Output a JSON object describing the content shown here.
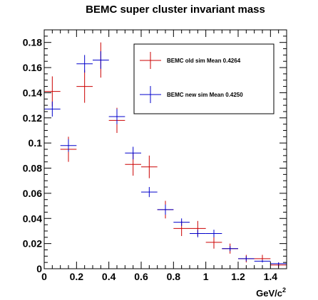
{
  "chart_data": {
    "type": "scatter",
    "title": "BEMC super cluster invariant mass",
    "xlabel": "GeV/c",
    "xlabel_sup": "2",
    "ylabel": "",
    "xlim": [
      0,
      1.5
    ],
    "ylim": [
      0,
      0.19
    ],
    "xticks": [
      0,
      0.2,
      0.4,
      0.6,
      0.8,
      1,
      1.2,
      1.4
    ],
    "xtick_labels": [
      "0",
      "0.2",
      "0.4",
      "0.6",
      "0.8",
      "1",
      "1.2",
      "1.4"
    ],
    "yticks": [
      0,
      0.02,
      0.04,
      0.06,
      0.08,
      0.1,
      0.12,
      0.14,
      0.16,
      0.18
    ],
    "ytick_labels": [
      "0",
      "0.02",
      "0.04",
      "0.06",
      "0.08",
      "0.1",
      "0.12",
      "0.14",
      "0.16",
      "0.18"
    ],
    "grid": false,
    "legend_position": "top-right",
    "bin_width": 0.1,
    "x": [
      0.05,
      0.15,
      0.25,
      0.35,
      0.45,
      0.55,
      0.65,
      0.75,
      0.85,
      0.95,
      1.05,
      1.15,
      1.25,
      1.35,
      1.45
    ],
    "series": [
      {
        "name": "BEMC old sim Mean 0.4264",
        "color": "#cc0000",
        "values": [
          0.141,
          0.095,
          0.145,
          0.166,
          0.118,
          0.083,
          0.081,
          0.047,
          0.032,
          0.032,
          0.021,
          0.016,
          0.008,
          0.008,
          0.003
        ],
        "errors": [
          0.012,
          0.01,
          0.013,
          0.014,
          0.01,
          0.009,
          0.009,
          0.007,
          0.006,
          0.006,
          0.005,
          0.004,
          0.003,
          0.003,
          0.002
        ]
      },
      {
        "name": "BEMC new sim Mean 0.4250",
        "color": "#0000cc",
        "values": [
          0.127,
          0.098,
          0.163,
          0.166,
          0.121,
          0.092,
          0.061,
          0.047,
          0.037,
          0.028,
          0.028,
          0.016,
          0.008,
          0.006,
          0.004
        ],
        "errors": [
          0.006,
          0.005,
          0.007,
          0.007,
          0.006,
          0.005,
          0.004,
          0.004,
          0.003,
          0.003,
          0.003,
          0.002,
          0.002,
          0.001,
          0.001
        ]
      }
    ]
  }
}
